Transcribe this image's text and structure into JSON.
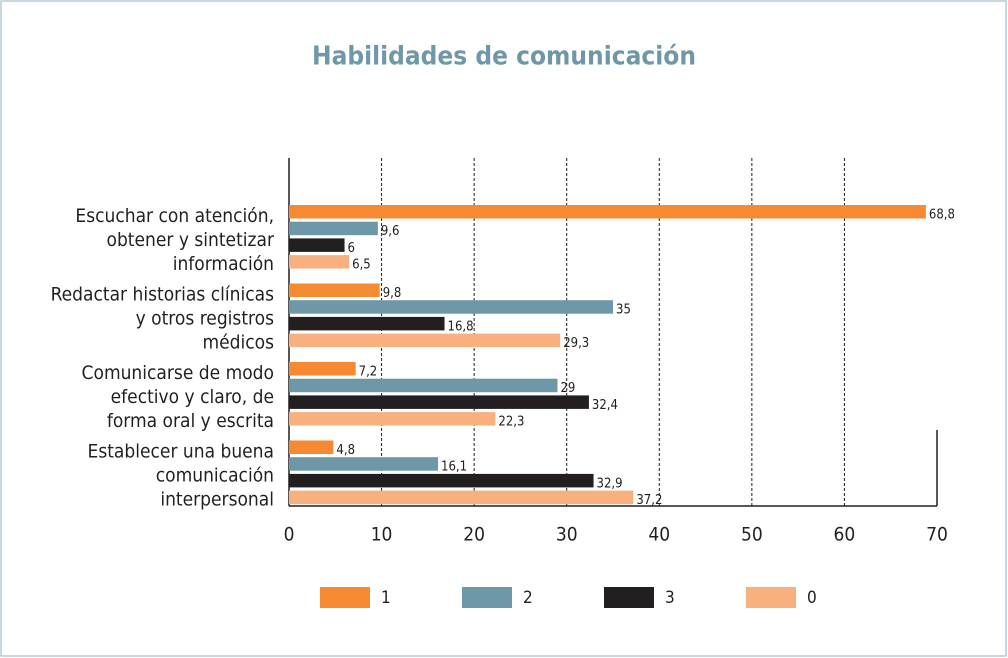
{
  "chart_data": {
    "type": "barh",
    "title": "Habilidades de comunicación",
    "categories": [
      "Escuchar con atención,\nobtener y sintetizar\ninformación",
      "Redactar historias clínicas\ny otros registros\nmédicos",
      "Comunicarse de modo\nefectivo y claro, de\nforma oral y escrita",
      "Establecer una buena\ncomunicación\ninterpersonal"
    ],
    "series": [
      {
        "name": "1",
        "color": "#f58a32",
        "values": [
          68.8,
          9.8,
          7.2,
          4.8
        ],
        "value_labels": [
          "68,8",
          "9,8",
          "7,2",
          "4,8"
        ]
      },
      {
        "name": "2",
        "color": "#6e97a8",
        "values": [
          9.6,
          35,
          29,
          16.1
        ],
        "value_labels": [
          "9,6",
          "35",
          "29",
          "16,1"
        ]
      },
      {
        "name": "3",
        "color": "#231f20",
        "values": [
          6,
          16.8,
          32.4,
          32.9
        ],
        "value_labels": [
          "6",
          "16,8",
          "32,4",
          "32,9"
        ]
      },
      {
        "name": "0",
        "color": "#f9b07f",
        "values": [
          6.5,
          29.3,
          22.3,
          37.2
        ],
        "value_labels": [
          "6,5",
          "29,3",
          "22,3",
          "37,2"
        ]
      }
    ],
    "xlim": [
      0,
      70
    ],
    "xticks": [
      0,
      10,
      20,
      30,
      40,
      50,
      60,
      70
    ],
    "grid": true,
    "legend": "bottom"
  }
}
